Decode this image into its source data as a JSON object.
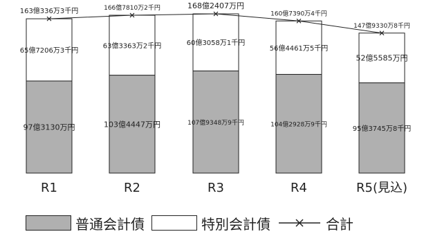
{
  "chart_data": {
    "type": "bar",
    "stacked": true,
    "categories": [
      "R1",
      "R2",
      "R3",
      "R4",
      "R5(見込)"
    ],
    "series": [
      {
        "name": "普通会計債",
        "color": "#b0b0b0",
        "values": [
          973130,
          1034447,
          1079348.9,
          1042928.9,
          953745.8
        ],
        "labels": [
          "97億3130万円",
          "103億4447万円",
          "107億9348万9千円",
          "104億2928万9千円",
          "95億3745万8千円"
        ]
      },
      {
        "name": "特別会計債",
        "color": "#ffffff",
        "values": [
          657206.3,
          633363.2,
          603058.1,
          564461.5,
          525585
        ],
        "labels": [
          "65億7206万3千円",
          "63億3363万2千円",
          "60億3058万1千円",
          "56億4461万5千円",
          "52億5585万円"
        ]
      }
    ],
    "total": {
      "name": "合計",
      "values": [
        1630336.3,
        1667810.2,
        1682407,
        1607390.4,
        1479330.8
      ],
      "labels": [
        "163億336万3千円",
        "166億7810万2千円",
        "168億2407万円",
        "160億7390万4千円",
        "147億9330万8千円"
      ]
    },
    "ylim": [
      0,
      1682407
    ],
    "axes_visible": false,
    "grid": false,
    "legend_position": "bottom"
  },
  "legend": {
    "general_label": "普通会計債",
    "special_label": "特別会計債",
    "total_label": "合計"
  }
}
